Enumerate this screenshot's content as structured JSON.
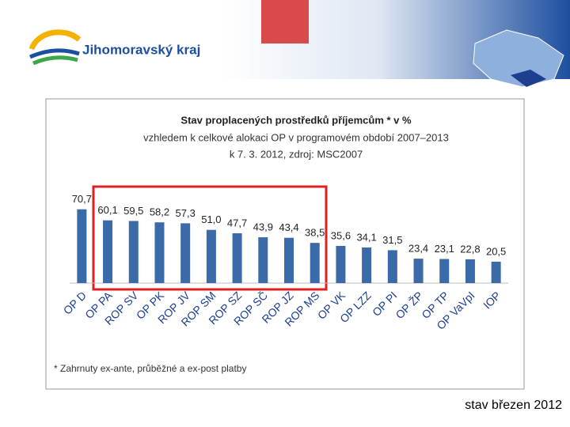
{
  "header": {
    "logo_text": "Jihomoravský kraj"
  },
  "chart_data": {
    "type": "bar",
    "title": "Stav proplacených prostředků příjemcům * v %",
    "subtitle": [
      "vzhledem k celkové alokaci OP v programovém období 2007–2013",
      "k 7. 3. 2012, zdroj: MSC2007"
    ],
    "categories": [
      "OP D",
      "OP PA",
      "ROP SV",
      "OP PK",
      "ROP JV",
      "ROP SM",
      "ROP SZ",
      "ROP SČ",
      "ROP JZ",
      "ROP MS",
      "OP VK",
      "OP LZZ",
      "OP PI",
      "OP ŽP",
      "OP TP",
      "OP VaVpI",
      "IOP"
    ],
    "values": [
      70.7,
      60.1,
      59.5,
      58.2,
      57.3,
      51.0,
      47.7,
      43.9,
      43.4,
      38.5,
      35.6,
      34.1,
      31.5,
      23.4,
      23.1,
      22.8,
      20.5
    ],
    "value_labels": [
      "70,7",
      "60,1",
      "59,5",
      "58,2",
      "57,3",
      "51,0",
      "47,7",
      "43,9",
      "43,4",
      "38,5",
      "35,6",
      "34,1",
      "31,5",
      "23,4",
      "23,1",
      "22,8",
      "20,5"
    ],
    "color": "#3a6aa8",
    "note": "* Zahrnuty ex-ante, průběžné a ex-post platby"
  },
  "footer": {
    "status": "stav březen 2012"
  }
}
